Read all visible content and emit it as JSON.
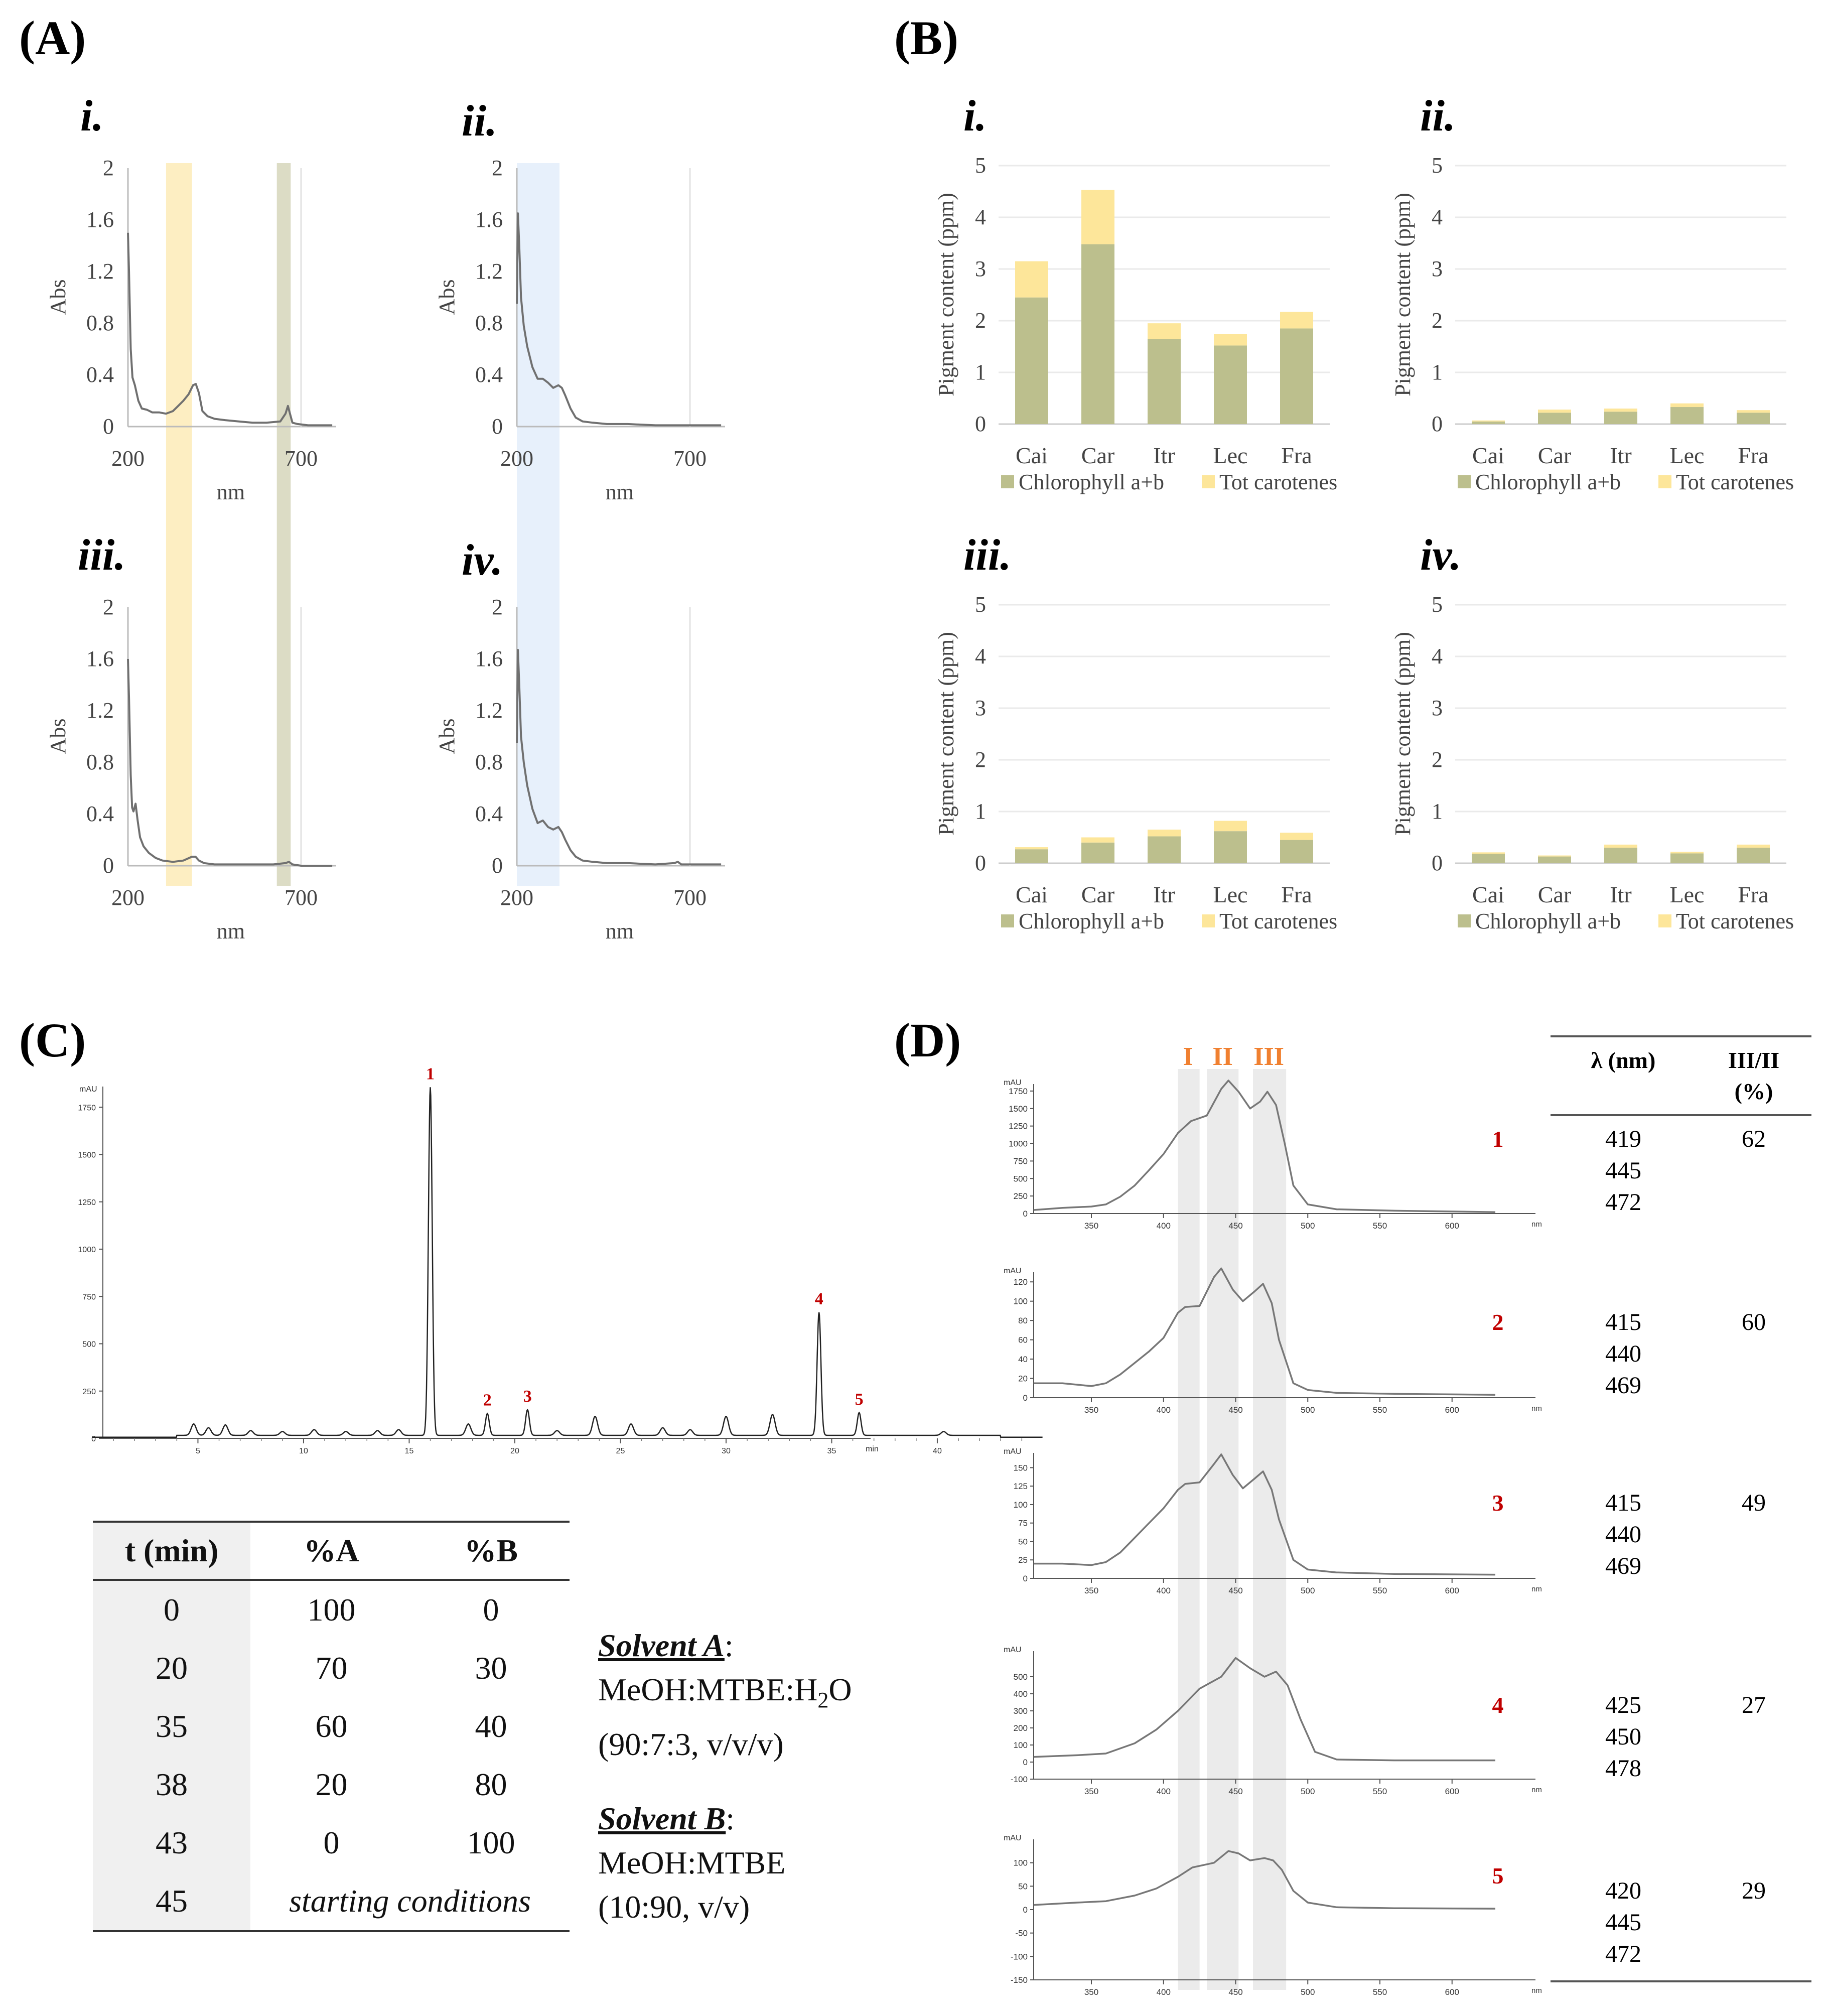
{
  "panel_labels": {
    "A": "(A)",
    "B": "(B)",
    "C": "(C)",
    "D": "(D)"
  },
  "subpanel_labels": [
    "i.",
    "ii.",
    "iii.",
    "iv."
  ],
  "colors": {
    "yellow_band": "#fdeec2",
    "green_band": "#dcdcc5",
    "blue_band": "#e7f0fb",
    "chlorophyll": "#bcbf8d",
    "carotenes": "#fde69a",
    "peak_red": "#c00000",
    "roman_orange": "#f08030"
  },
  "chart_data": [
    {
      "id": "A-i",
      "type": "line",
      "xlabel": "nm",
      "ylabel": "Abs",
      "xlim": [
        200,
        800
      ],
      "ylim": [
        0,
        2
      ],
      "xticks": [
        "200",
        "700"
      ],
      "yticks": [
        "0",
        "0.4",
        "0.8",
        "1.2",
        "1.6",
        "2"
      ],
      "highlight_bands": [
        {
          "x": [
            310,
            410
          ],
          "color": "yellow"
        },
        {
          "x": [
            630,
            690
          ],
          "color": "green"
        }
      ],
      "x": [
        200,
        203,
        208,
        213,
        220,
        230,
        240,
        255,
        270,
        290,
        310,
        330,
        345,
        360,
        375,
        388,
        396,
        405,
        415,
        430,
        450,
        480,
        520,
        560,
        600,
        640,
        655,
        662,
        668,
        675,
        690,
        720,
        760,
        790
      ],
      "y": [
        1.5,
        1.2,
        0.6,
        0.38,
        0.32,
        0.2,
        0.14,
        0.13,
        0.11,
        0.11,
        0.1,
        0.12,
        0.16,
        0.2,
        0.25,
        0.32,
        0.33,
        0.26,
        0.12,
        0.08,
        0.06,
        0.05,
        0.04,
        0.03,
        0.03,
        0.04,
        0.1,
        0.16,
        0.1,
        0.03,
        0.02,
        0.01,
        0.01,
        0.01
      ]
    },
    {
      "id": "A-ii",
      "type": "line",
      "xlabel": "nm",
      "ylabel": "Abs",
      "xlim": [
        200,
        800
      ],
      "ylim": [
        0,
        2
      ],
      "xticks": [
        "200",
        "700"
      ],
      "yticks": [
        "0",
        "0.4",
        "0.8",
        "1.2",
        "1.6",
        "2"
      ],
      "highlight_bands": [
        {
          "x": [
            200,
            325
          ],
          "color": "blue"
        }
      ],
      "x": [
        200,
        203,
        207,
        212,
        220,
        230,
        245,
        260,
        275,
        290,
        305,
        320,
        330,
        340,
        355,
        370,
        390,
        420,
        460,
        520,
        600,
        700,
        790
      ],
      "y": [
        0.95,
        1.65,
        1.4,
        1.0,
        0.78,
        0.62,
        0.46,
        0.37,
        0.37,
        0.34,
        0.3,
        0.32,
        0.3,
        0.24,
        0.14,
        0.07,
        0.04,
        0.03,
        0.02,
        0.02,
        0.01,
        0.01,
        0.01
      ]
    },
    {
      "id": "A-iii",
      "type": "line",
      "xlabel": "nm",
      "ylabel": "Abs",
      "xlim": [
        200,
        800
      ],
      "ylim": [
        0,
        2
      ],
      "xticks": [
        "200",
        "700"
      ],
      "yticks": [
        "0",
        "0.4",
        "0.8",
        "1.2",
        "1.6",
        "2"
      ],
      "highlight_bands": [
        {
          "x": [
            310,
            410
          ],
          "color": "yellow"
        },
        {
          "x": [
            630,
            690
          ],
          "color": "green"
        }
      ],
      "x": [
        200,
        203,
        208,
        212,
        216,
        222,
        228,
        235,
        245,
        260,
        280,
        300,
        330,
        360,
        385,
        395,
        405,
        420,
        450,
        500,
        560,
        620,
        655,
        665,
        675,
        700,
        750,
        790
      ],
      "y": [
        1.6,
        1.3,
        0.7,
        0.45,
        0.42,
        0.48,
        0.35,
        0.22,
        0.15,
        0.1,
        0.06,
        0.04,
        0.03,
        0.04,
        0.07,
        0.07,
        0.04,
        0.02,
        0.01,
        0.01,
        0.01,
        0.01,
        0.02,
        0.03,
        0.01,
        0.0,
        0.0,
        0.0
      ]
    },
    {
      "id": "A-iv",
      "type": "line",
      "xlabel": "nm",
      "ylabel": "Abs",
      "xlim": [
        200,
        800
      ],
      "ylim": [
        0,
        2
      ],
      "xticks": [
        "200",
        "700"
      ],
      "yticks": [
        "0",
        "0.4",
        "0.8",
        "1.2",
        "1.6",
        "2"
      ],
      "highlight_bands": [
        {
          "x": [
            200,
            325
          ],
          "color": "blue"
        }
      ],
      "x": [
        200,
        203,
        207,
        212,
        220,
        230,
        245,
        260,
        275,
        290,
        305,
        320,
        330,
        340,
        355,
        370,
        390,
        420,
        460,
        520,
        600,
        655,
        665,
        675,
        700,
        790
      ],
      "y": [
        0.95,
        1.67,
        1.4,
        1.0,
        0.8,
        0.62,
        0.44,
        0.33,
        0.35,
        0.3,
        0.28,
        0.3,
        0.26,
        0.2,
        0.12,
        0.07,
        0.04,
        0.03,
        0.02,
        0.02,
        0.01,
        0.02,
        0.03,
        0.01,
        0.01,
        0.01
      ]
    },
    {
      "id": "B-i",
      "type": "bar",
      "stacked": true,
      "ylabel": "Pigment content (ppm)",
      "ylim": [
        0,
        5
      ],
      "yticks": [
        "0",
        "1",
        "2",
        "3",
        "4",
        "5"
      ],
      "categories": [
        "Cai",
        "Car",
        "Itr",
        "Lec",
        "Fra"
      ],
      "series": [
        {
          "name": "Chlorophyll a+b",
          "values": [
            2.45,
            3.48,
            1.65,
            1.52,
            1.85
          ]
        },
        {
          "name": "Tot carotenes",
          "values": [
            0.7,
            1.05,
            0.3,
            0.22,
            0.32
          ]
        }
      ]
    },
    {
      "id": "B-ii",
      "type": "bar",
      "stacked": true,
      "ylabel": "Pigment content (ppm)",
      "ylim": [
        0,
        5
      ],
      "yticks": [
        "0",
        "1",
        "2",
        "3",
        "4",
        "5"
      ],
      "categories": [
        "Cai",
        "Car",
        "Itr",
        "Lec",
        "Fra"
      ],
      "series": [
        {
          "name": "Chlorophyll a+b",
          "values": [
            0.05,
            0.22,
            0.24,
            0.33,
            0.22
          ]
        },
        {
          "name": "Tot carotenes",
          "values": [
            0.02,
            0.06,
            0.06,
            0.07,
            0.05
          ]
        }
      ]
    },
    {
      "id": "B-iii",
      "type": "bar",
      "stacked": true,
      "ylabel": "Pigment content (ppm)",
      "ylim": [
        0,
        5
      ],
      "yticks": [
        "0",
        "1",
        "2",
        "3",
        "4",
        "5"
      ],
      "categories": [
        "Cai",
        "Car",
        "Itr",
        "Lec",
        "Fra"
      ],
      "series": [
        {
          "name": "Chlorophyll a+b",
          "values": [
            0.27,
            0.4,
            0.52,
            0.62,
            0.45
          ]
        },
        {
          "name": "Tot carotenes",
          "values": [
            0.04,
            0.1,
            0.13,
            0.2,
            0.14
          ]
        }
      ]
    },
    {
      "id": "B-iv",
      "type": "bar",
      "stacked": true,
      "ylabel": "Pigment content (ppm)",
      "ylim": [
        0,
        5
      ],
      "yticks": [
        "0",
        "1",
        "2",
        "3",
        "4",
        "5"
      ],
      "categories": [
        "Cai",
        "Car",
        "Itr",
        "Lec",
        "Fra"
      ],
      "series": [
        {
          "name": "Chlorophyll a+b",
          "values": [
            0.18,
            0.13,
            0.3,
            0.19,
            0.3
          ]
        },
        {
          "name": "Tot carotenes",
          "values": [
            0.03,
            0.02,
            0.06,
            0.03,
            0.06
          ]
        }
      ]
    },
    {
      "id": "C",
      "type": "line",
      "xunit": "min",
      "yunit": "mAU",
      "xlim": [
        0,
        45
      ],
      "ylim": [
        -50,
        1900
      ],
      "xticks": [
        "5",
        "10",
        "15",
        "20",
        "25",
        "30",
        "35",
        "40"
      ],
      "yticks": [
        "0",
        "250",
        "500",
        "750",
        "1000",
        "1250",
        "1500",
        "1750"
      ],
      "peaks": [
        {
          "label": "1",
          "x": 16.0,
          "y": 1840
        },
        {
          "label": "2",
          "x": 18.7,
          "y": 115
        },
        {
          "label": "3",
          "x": 20.6,
          "y": 135
        },
        {
          "label": "4",
          "x": 34.4,
          "y": 650
        },
        {
          "label": "5",
          "x": 36.3,
          "y": 120
        }
      ],
      "minor_peaks": [
        {
          "x": 4.8,
          "y": 60
        },
        {
          "x": 5.5,
          "y": 40
        },
        {
          "x": 6.3,
          "y": 55
        },
        {
          "x": 7.5,
          "y": 25
        },
        {
          "x": 9.0,
          "y": 20
        },
        {
          "x": 10.5,
          "y": 30
        },
        {
          "x": 12.0,
          "y": 20
        },
        {
          "x": 13.5,
          "y": 25
        },
        {
          "x": 14.5,
          "y": 30
        },
        {
          "x": 17.8,
          "y": 60
        },
        {
          "x": 22.0,
          "y": 25
        },
        {
          "x": 23.8,
          "y": 100
        },
        {
          "x": 25.5,
          "y": 60
        },
        {
          "x": 27.0,
          "y": 40
        },
        {
          "x": 28.3,
          "y": 30
        },
        {
          "x": 30.0,
          "y": 100
        },
        {
          "x": 32.2,
          "y": 110
        },
        {
          "x": 40.3,
          "y": 20
        }
      ]
    },
    {
      "id": "D-1",
      "type": "line",
      "xunit": "nm",
      "yunit": "mAU",
      "xlim": [
        310,
        630
      ],
      "ylim": [
        0,
        1850
      ],
      "xticks": [
        "350",
        "400",
        "450",
        "500",
        "550",
        "600"
      ],
      "yticks": [
        "0",
        "250",
        "500",
        "750",
        "1000",
        "1250",
        "1500",
        "1750"
      ],
      "x": [
        310,
        330,
        350,
        360,
        370,
        380,
        390,
        400,
        410,
        419,
        430,
        440,
        445,
        452,
        460,
        467,
        472,
        478,
        484,
        490,
        500,
        520,
        560,
        630
      ],
      "y": [
        50,
        80,
        100,
        130,
        240,
        400,
        620,
        850,
        1150,
        1320,
        1400,
        1780,
        1900,
        1740,
        1500,
        1600,
        1740,
        1550,
        1000,
        400,
        130,
        60,
        40,
        20
      ]
    },
    {
      "id": "D-2",
      "type": "line",
      "xunit": "nm",
      "yunit": "mAU",
      "xlim": [
        310,
        630
      ],
      "ylim": [
        0,
        130
      ],
      "xticks": [
        "350",
        "400",
        "450",
        "500",
        "550",
        "600"
      ],
      "yticks": [
        "0",
        "20",
        "40",
        "60",
        "80",
        "100",
        "120"
      ],
      "x": [
        310,
        330,
        350,
        360,
        370,
        380,
        390,
        400,
        410,
        415,
        425,
        435,
        440,
        448,
        455,
        463,
        469,
        475,
        480,
        490,
        500,
        520,
        560,
        630
      ],
      "y": [
        15,
        15,
        12,
        15,
        24,
        36,
        48,
        62,
        88,
        94,
        95,
        125,
        134,
        112,
        100,
        110,
        118,
        98,
        60,
        15,
        8,
        5,
        4,
        3
      ]
    },
    {
      "id": "D-3",
      "type": "line",
      "xunit": "nm",
      "yunit": "mAU",
      "xlim": [
        310,
        630
      ],
      "ylim": [
        0,
        170
      ],
      "xticks": [
        "350",
        "400",
        "450",
        "500",
        "550",
        "600"
      ],
      "yticks": [
        "0",
        "25",
        "50",
        "75",
        "100",
        "125",
        "150"
      ],
      "x": [
        310,
        330,
        350,
        360,
        370,
        380,
        390,
        400,
        410,
        415,
        425,
        435,
        440,
        448,
        455,
        463,
        469,
        475,
        480,
        490,
        500,
        520,
        560,
        630
      ],
      "y": [
        20,
        20,
        18,
        22,
        35,
        55,
        75,
        95,
        120,
        128,
        130,
        155,
        168,
        140,
        122,
        135,
        145,
        120,
        80,
        25,
        12,
        8,
        6,
        5
      ]
    },
    {
      "id": "D-4",
      "type": "line",
      "xunit": "nm",
      "yunit": "mAU",
      "xlim": [
        310,
        630
      ],
      "ylim": [
        -100,
        650
      ],
      "xticks": [
        "350",
        "400",
        "450",
        "500",
        "550",
        "600"
      ],
      "yticks": [
        "-100",
        "0",
        "100",
        "200",
        "300",
        "400",
        "500"
      ],
      "x": [
        310,
        340,
        360,
        380,
        395,
        410,
        425,
        440,
        450,
        460,
        470,
        478,
        486,
        495,
        505,
        520,
        560,
        630
      ],
      "y": [
        30,
        40,
        50,
        110,
        190,
        300,
        430,
        500,
        610,
        550,
        500,
        530,
        450,
        250,
        60,
        15,
        10,
        10
      ]
    },
    {
      "id": "D-5",
      "type": "line",
      "xunit": "nm",
      "yunit": "mAU",
      "xlim": [
        310,
        630
      ],
      "ylim": [
        -150,
        150
      ],
      "xticks": [
        "350",
        "400",
        "450",
        "500",
        "550",
        "600"
      ],
      "yticks": [
        "-150",
        "-100",
        "-50",
        "0",
        "50",
        "100"
      ],
      "x": [
        310,
        340,
        360,
        380,
        395,
        410,
        420,
        435,
        445,
        452,
        460,
        470,
        476,
        482,
        490,
        500,
        520,
        560,
        630
      ],
      "y": [
        10,
        15,
        18,
        30,
        45,
        70,
        90,
        100,
        125,
        120,
        105,
        110,
        105,
        85,
        40,
        15,
        5,
        3,
        2
      ]
    }
  ],
  "panel_D": {
    "roman_labels": [
      "I",
      "II",
      "III"
    ],
    "table_headers": [
      "λ (nm)",
      "III/II",
      "(%)"
    ],
    "rows": [
      {
        "peak": "1",
        "wavelengths": [
          "419",
          "445",
          "472"
        ],
        "ratio": "62"
      },
      {
        "peak": "2",
        "wavelengths": [
          "415",
          "440",
          "469"
        ],
        "ratio": "60"
      },
      {
        "peak": "3",
        "wavelengths": [
          "415",
          "440",
          "469"
        ],
        "ratio": "49"
      },
      {
        "peak": "4",
        "wavelengths": [
          "425",
          "450",
          "478"
        ],
        "ratio": "27"
      },
      {
        "peak": "5",
        "wavelengths": [
          "420",
          "445",
          "472"
        ],
        "ratio": "29"
      }
    ]
  },
  "gradient_table": {
    "headers": [
      "t (min)",
      "%A",
      "%B"
    ],
    "rows": [
      [
        "0",
        "100",
        "0"
      ],
      [
        "20",
        "70",
        "30"
      ],
      [
        "35",
        "60",
        "40"
      ],
      [
        "38",
        "20",
        "80"
      ],
      [
        "43",
        "0",
        "100"
      ]
    ],
    "last_row": {
      "t": "45",
      "note": "starting conditions"
    }
  },
  "solvents": {
    "a_label": "Solvent A",
    "a_line1_pre": "MeOH:MTBE:H",
    "a_line1_sub": "2",
    "a_line1_post": "O",
    "a_line2": "(90:7:3, v/v/v)",
    "b_label": "Solvent B",
    "b_line1": "MeOH:MTBE",
    "b_line2": "(10:90, v/v)"
  }
}
